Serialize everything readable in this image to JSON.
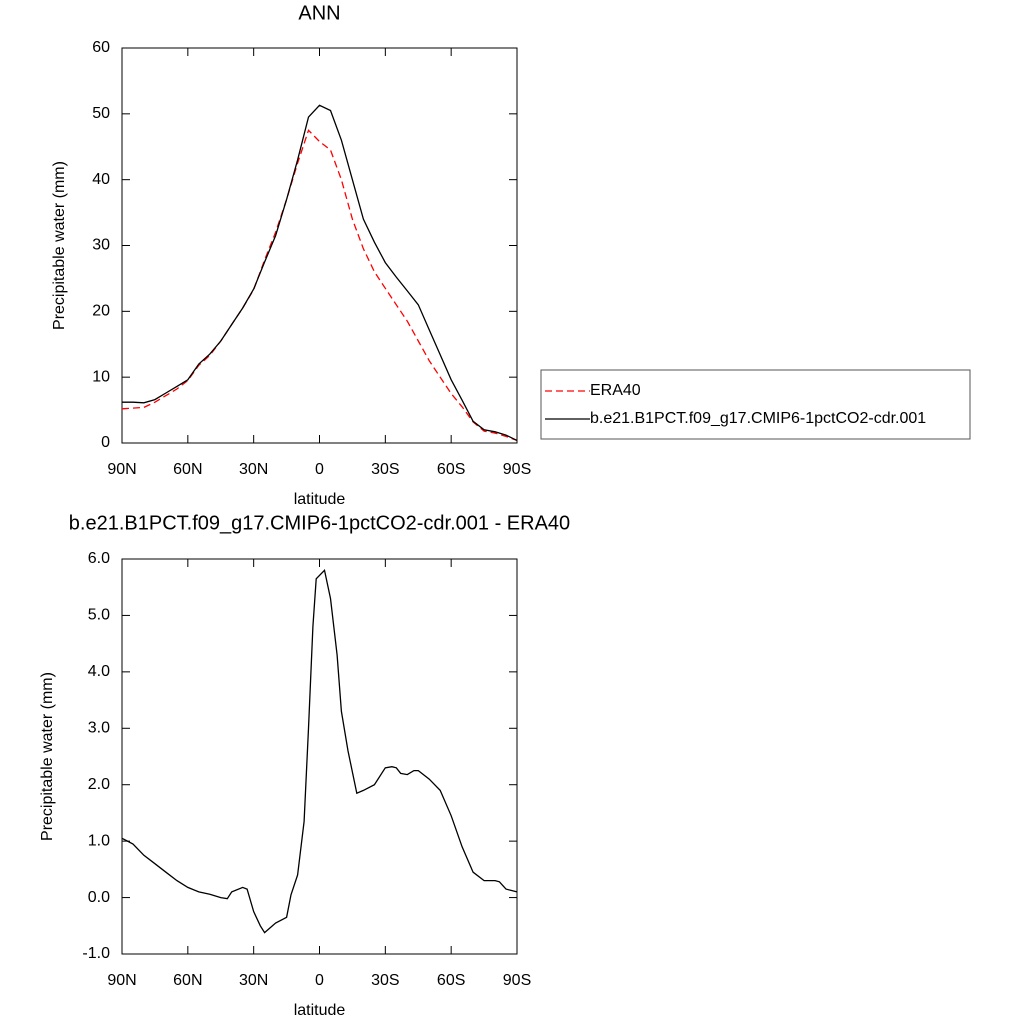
{
  "chart_data": [
    {
      "type": "line",
      "title": "ANN",
      "ylabel": "Precipitable water (mm)",
      "xlabel": "latitude",
      "x": [
        90,
        85,
        80,
        75,
        70,
        65,
        60,
        55,
        50,
        45,
        40,
        35,
        30,
        25,
        20,
        15,
        10,
        5,
        0,
        -5,
        -10,
        -15,
        -20,
        -25,
        -30,
        -35,
        -40,
        -45,
        -50,
        -55,
        -60,
        -65,
        -70,
        -75,
        -80,
        -85,
        -90
      ],
      "series": [
        {
          "name": "ERA40",
          "color": "#ff0000",
          "dash": true,
          "values": [
            5.2,
            5.3,
            5.4,
            6.2,
            7.2,
            8.2,
            9.5,
            11.8,
            13.3,
            15.5,
            18,
            20.5,
            23.3,
            27.8,
            32,
            37,
            42.5,
            47.5,
            45.8,
            44.5,
            40,
            34,
            29.5,
            26,
            23.5,
            21,
            18.5,
            15.5,
            12.5,
            10,
            7.5,
            5.5,
            3.2,
            1.8,
            1.5,
            1,
            0.4
          ]
        },
        {
          "name": "b.e21.B1PCT.f09_g17.CMIP6-1pctCO2-cdr.001",
          "color": "#000000",
          "dash": false,
          "values": [
            6.2,
            6.2,
            6.1,
            6.6,
            7.6,
            8.6,
            9.6,
            12,
            13.5,
            15.5,
            18,
            20.5,
            23.4,
            27.5,
            31.5,
            37,
            43,
            49.5,
            51.3,
            50.5,
            46,
            40,
            34,
            30.5,
            27.4,
            25.2,
            23.1,
            21,
            17.2,
            13.4,
            9.6,
            6.5,
            3.3,
            2,
            1.7,
            1.2,
            0.4
          ]
        }
      ],
      "xlim": [
        90,
        -90
      ],
      "xticks": [
        {
          "value": 90,
          "label": "90N"
        },
        {
          "value": 60,
          "label": "60N"
        },
        {
          "value": 30,
          "label": "30N"
        },
        0,
        {
          "value": -30,
          "label": "30S"
        },
        {
          "value": -60,
          "label": "60S"
        },
        {
          "value": -90,
          "label": "90S"
        }
      ],
      "ylim": [
        0,
        60
      ],
      "yticks": [
        0,
        10,
        20,
        30,
        40,
        50,
        60
      ],
      "legend": "right"
    },
    {
      "type": "line",
      "title": "b.e21.B1PCT.f09_g17.CMIP6-1pctCO2-cdr.001 - ERA40",
      "ylabel": "Precipitable water (mm)",
      "xlabel": "latitude",
      "x": [
        90,
        85,
        80,
        75,
        70,
        65,
        60,
        55,
        50,
        45,
        42,
        40,
        35,
        33,
        30,
        27,
        25,
        20,
        15,
        13,
        10,
        7,
        5,
        3,
        1.5,
        -2.3,
        -5,
        -8,
        -10,
        -13,
        -17,
        -20,
        -25,
        -30,
        -33,
        -35,
        -37,
        -40,
        -43,
        -45,
        -50,
        -55,
        -60,
        -65,
        -70,
        -75,
        -80,
        -82,
        -85,
        -90
      ],
      "series": [
        {
          "color": "#000000",
          "values": [
            1.05,
            0.95,
            0.75,
            0.6,
            0.45,
            0.3,
            0.18,
            0.1,
            0.06,
            0,
            -0.02,
            0.1,
            0.18,
            0.15,
            -0.25,
            -0.5,
            -0.62,
            -0.45,
            -0.35,
            0.05,
            0.4,
            1.35,
            3,
            4.8,
            5.65,
            5.8,
            5.3,
            4.3,
            3.3,
            2.6,
            1.85,
            1.9,
            2,
            2.3,
            2.32,
            2.3,
            2.2,
            2.18,
            2.25,
            2.25,
            2.1,
            1.9,
            1.45,
            0.9,
            0.45,
            0.3,
            0.3,
            0.28,
            0.15,
            0.1
          ]
        }
      ],
      "xlim": [
        90,
        -90
      ],
      "xticks": [
        {
          "value": 90,
          "label": "90N"
        },
        {
          "value": 60,
          "label": "60N"
        },
        {
          "value": 30,
          "label": "30N"
        },
        0,
        {
          "value": -30,
          "label": "30S"
        },
        {
          "value": -60,
          "label": "60S"
        },
        {
          "value": -90,
          "label": "90S"
        }
      ],
      "ylim": [
        -1,
        6
      ],
      "yticks": [
        {
          "value": -1,
          "label": "-1.0"
        },
        {
          "value": 0,
          "label": "0.0"
        },
        {
          "value": 1,
          "label": "1.0"
        },
        {
          "value": 2,
          "label": "2.0"
        },
        {
          "value": 3,
          "label": "3.0"
        },
        {
          "value": 4,
          "label": "4.0"
        },
        {
          "value": 5,
          "label": "5.0"
        },
        {
          "value": 6,
          "label": "6.0"
        }
      ]
    }
  ]
}
